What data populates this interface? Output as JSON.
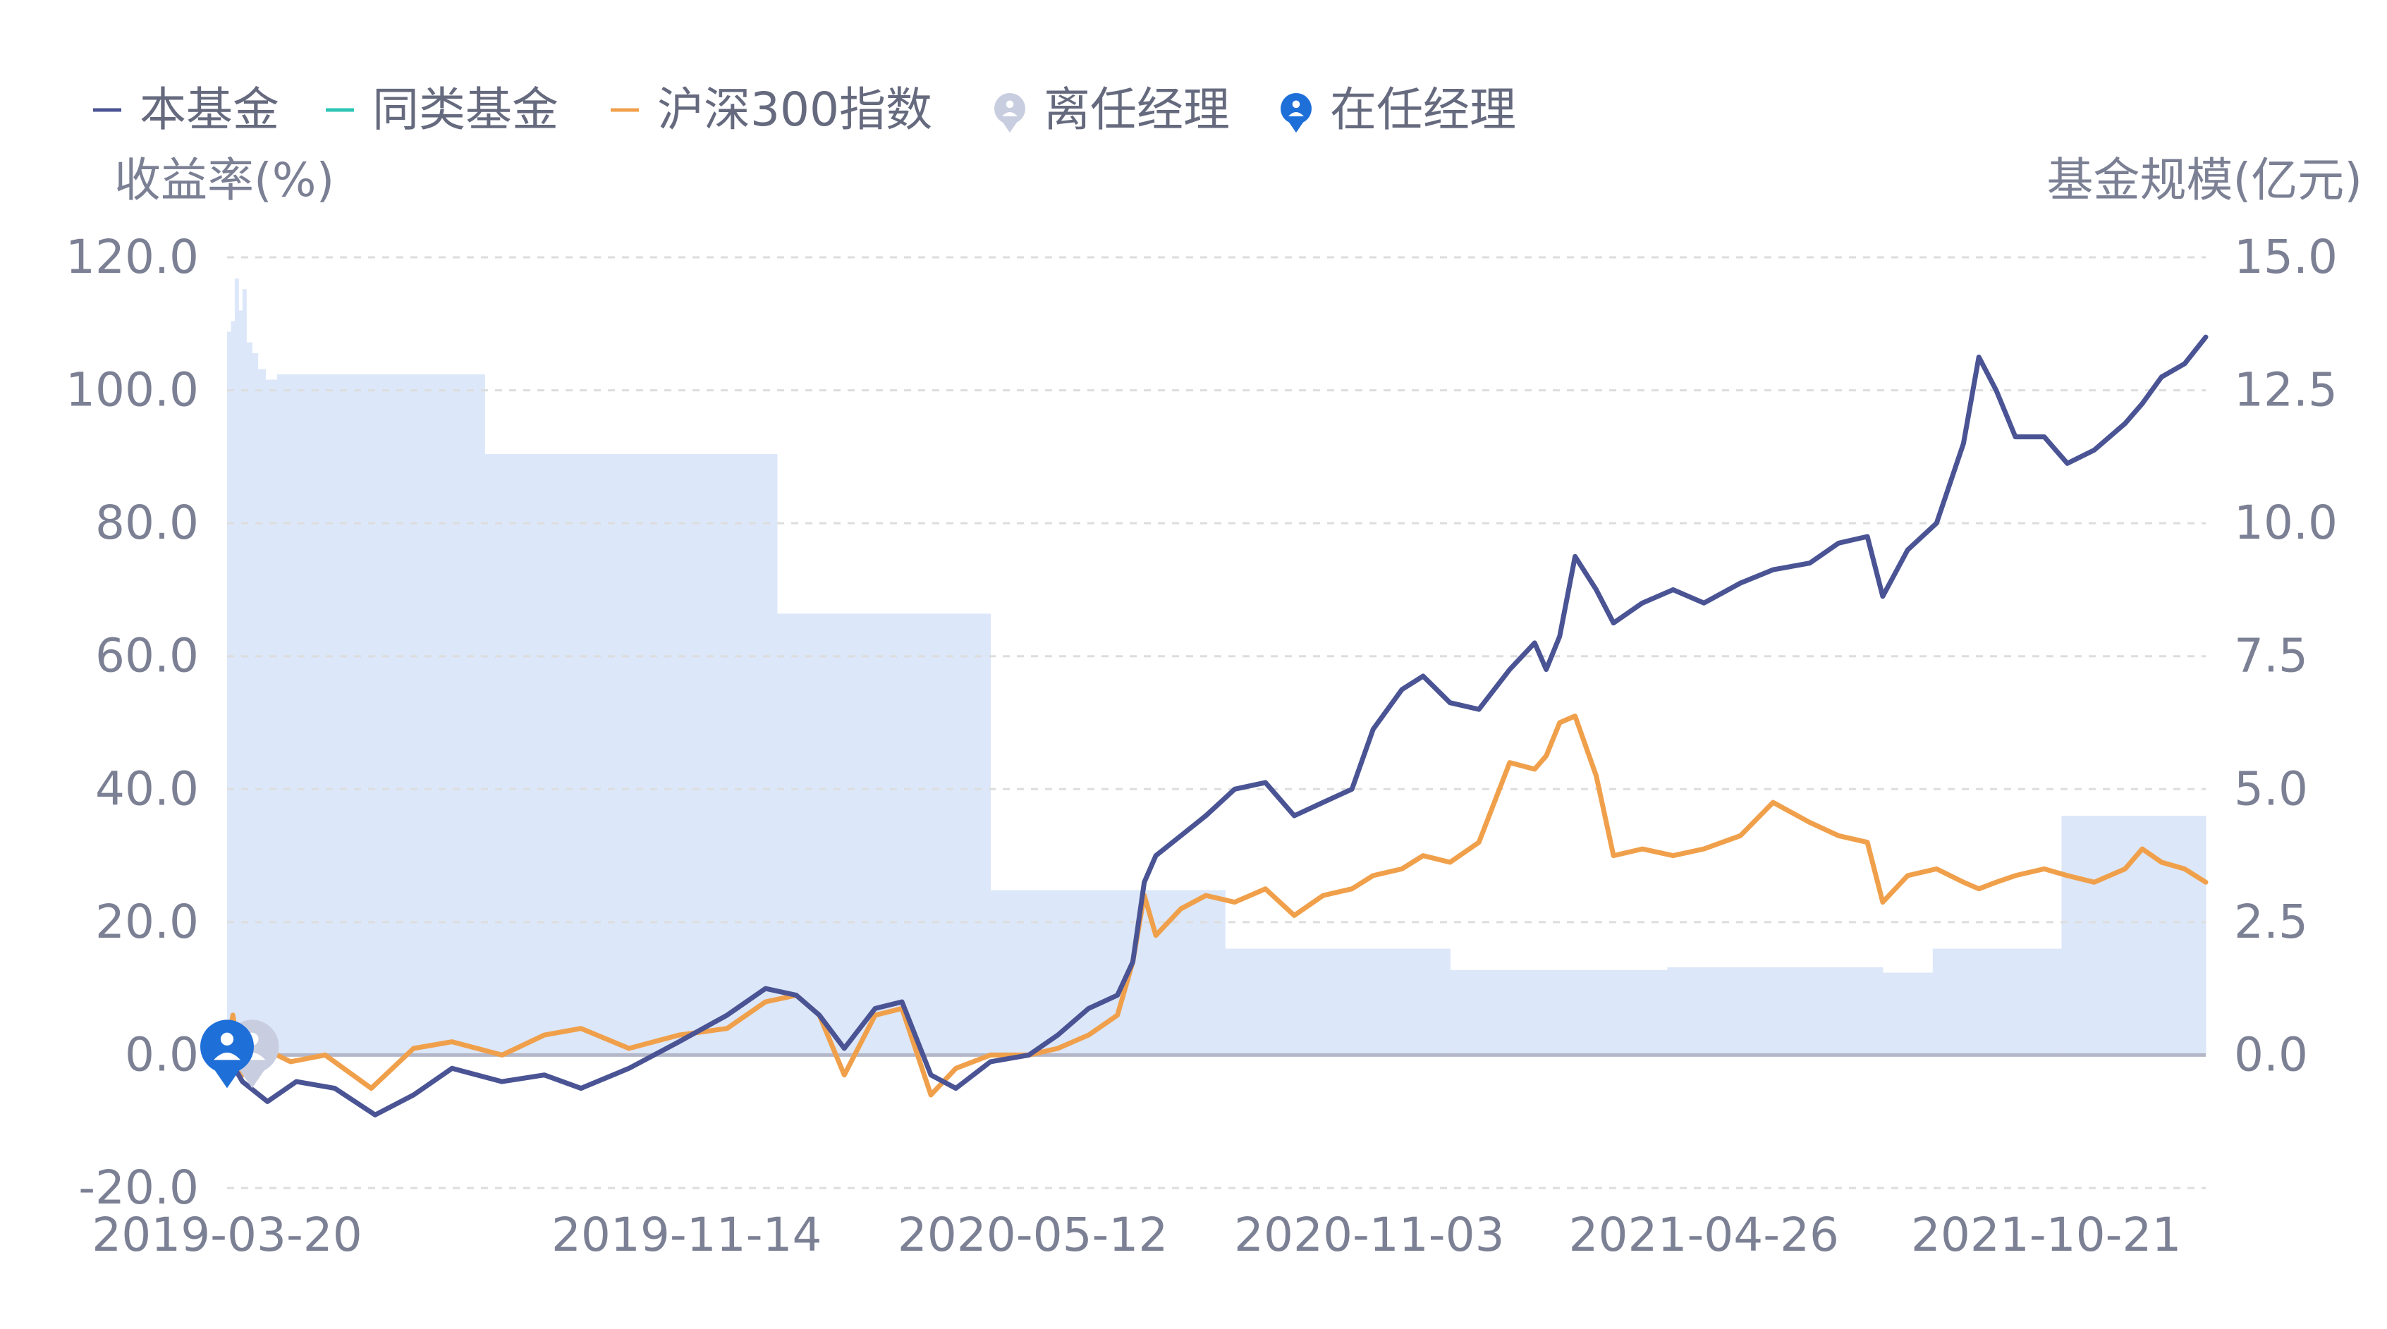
{
  "colors": {
    "fund": "#4a5494",
    "peer": "#2ec4b6",
    "index": "#f0a04b",
    "scale_fill": "#dce7f9",
    "former_manager": "#c8cee0",
    "current_manager": "#1f6fd8"
  },
  "legend": [
    {
      "key": "fund",
      "label": "本基金",
      "marker": "line-dash"
    },
    {
      "key": "peer",
      "label": "同类基金",
      "marker": "line-dash"
    },
    {
      "key": "index",
      "label": "沪深300指数",
      "marker": "line-dash"
    },
    {
      "key": "former_manager",
      "label": "离任经理",
      "marker": "person-pin-icon"
    },
    {
      "key": "current_manager",
      "label": "在任经理",
      "marker": "person-pin-icon"
    }
  ],
  "chart_data": {
    "type": "line",
    "left_axis_title": "收益率(%)",
    "right_axis_title": "基金规模(亿元)",
    "y_left": {
      "min": -20,
      "max": 120,
      "ticks": [
        -20,
        0,
        20,
        40,
        60,
        80,
        100,
        120
      ],
      "tick_labels": [
        "-20.0",
        "0.0",
        "20.0",
        "40.0",
        "60.0",
        "80.0",
        "100.0",
        "120.0"
      ]
    },
    "y_right": {
      "min": -2.5,
      "max": 15,
      "ticks": [
        0,
        2.5,
        5,
        7.5,
        10,
        12.5,
        15
      ],
      "tick_labels": [
        "0.0",
        "2.5",
        "5.0",
        "7.5",
        "10.0",
        "12.5",
        "15.0"
      ]
    },
    "x_range": [
      "2019-03-20",
      "2022-01-12"
    ],
    "x_tick_labels": [
      "2019-03-20",
      "2019-11-14",
      "2020-05-12",
      "2020-11-03",
      "2021-04-26",
      "2021-10-21"
    ],
    "grid": "horizontal-dashed",
    "legend_position": "top-left",
    "scale_series": {
      "name": "基金规模",
      "type": "step-area",
      "points": [
        [
          "2019-03-20",
          13.6
        ],
        [
          "2019-03-22",
          13.8
        ],
        [
          "2019-03-24",
          14.6
        ],
        [
          "2019-03-26",
          14.0
        ],
        [
          "2019-03-28",
          14.4
        ],
        [
          "2019-03-30",
          13.4
        ],
        [
          "2019-04-02",
          13.2
        ],
        [
          "2019-04-05",
          12.9
        ],
        [
          "2019-04-09",
          12.7
        ],
        [
          "2019-04-15",
          12.8
        ],
        [
          "2019-08-01",
          11.3
        ],
        [
          "2019-12-31",
          8.3
        ],
        [
          "2020-04-20",
          3.1
        ],
        [
          "2020-08-20",
          2.0
        ],
        [
          "2020-12-15",
          1.6
        ],
        [
          "2021-04-07",
          1.65
        ],
        [
          "2021-07-28",
          1.55
        ],
        [
          "2021-08-23",
          2.0
        ],
        [
          "2021-10-29",
          4.5
        ],
        [
          "2022-01-12",
          4.5
        ]
      ]
    },
    "series": [
      {
        "key": "fund",
        "name": "本基金",
        "points": [
          [
            "2019-03-20",
            0
          ],
          [
            "2019-03-28",
            -4
          ],
          [
            "2019-04-10",
            -7
          ],
          [
            "2019-04-25",
            -4
          ],
          [
            "2019-05-15",
            -5
          ],
          [
            "2019-06-05",
            -9
          ],
          [
            "2019-06-25",
            -6
          ],
          [
            "2019-07-15",
            -2
          ],
          [
            "2019-08-10",
            -4
          ],
          [
            "2019-09-01",
            -3
          ],
          [
            "2019-09-20",
            -5
          ],
          [
            "2019-10-15",
            -2
          ],
          [
            "2019-11-10",
            2
          ],
          [
            "2019-12-05",
            6
          ],
          [
            "2019-12-25",
            10
          ],
          [
            "2020-01-10",
            9
          ],
          [
            "2020-01-22",
            6
          ],
          [
            "2020-02-04",
            1
          ],
          [
            "2020-02-20",
            7
          ],
          [
            "2020-03-05",
            8
          ],
          [
            "2020-03-20",
            -3
          ],
          [
            "2020-04-02",
            -5
          ],
          [
            "2020-04-20",
            -1
          ],
          [
            "2020-05-10",
            0
          ],
          [
            "2020-05-25",
            3
          ],
          [
            "2020-06-10",
            7
          ],
          [
            "2020-06-25",
            9
          ],
          [
            "2020-07-03",
            14
          ],
          [
            "2020-07-09",
            26
          ],
          [
            "2020-07-15",
            30
          ],
          [
            "2020-07-28",
            33
          ],
          [
            "2020-08-10",
            36
          ],
          [
            "2020-08-25",
            40
          ],
          [
            "2020-09-10",
            41
          ],
          [
            "2020-09-25",
            36
          ],
          [
            "2020-10-10",
            38
          ],
          [
            "2020-10-25",
            40
          ],
          [
            "2020-11-05",
            49
          ],
          [
            "2020-11-20",
            55
          ],
          [
            "2020-12-01",
            57
          ],
          [
            "2020-12-15",
            53
          ],
          [
            "2020-12-30",
            52
          ],
          [
            "2021-01-15",
            58
          ],
          [
            "2021-01-28",
            62
          ],
          [
            "2021-02-03",
            58
          ],
          [
            "2021-02-10",
            63
          ],
          [
            "2021-02-18",
            75
          ],
          [
            "2021-03-01",
            70
          ],
          [
            "2021-03-10",
            65
          ],
          [
            "2021-03-25",
            68
          ],
          [
            "2021-04-10",
            70
          ],
          [
            "2021-04-26",
            68
          ],
          [
            "2021-05-15",
            71
          ],
          [
            "2021-06-01",
            73
          ],
          [
            "2021-06-20",
            74
          ],
          [
            "2021-07-05",
            77
          ],
          [
            "2021-07-20",
            78
          ],
          [
            "2021-07-28",
            69
          ],
          [
            "2021-08-10",
            76
          ],
          [
            "2021-08-25",
            80
          ],
          [
            "2021-09-08",
            92
          ],
          [
            "2021-09-16",
            105
          ],
          [
            "2021-09-25",
            100
          ],
          [
            "2021-10-05",
            93
          ],
          [
            "2021-10-20",
            93
          ],
          [
            "2021-11-01",
            89
          ],
          [
            "2021-11-15",
            91
          ],
          [
            "2021-12-01",
            95
          ],
          [
            "2021-12-10",
            98
          ],
          [
            "2021-12-20",
            102
          ],
          [
            "2022-01-01",
            104
          ],
          [
            "2022-01-12",
            108
          ]
        ]
      },
      {
        "key": "index",
        "name": "沪深300指数",
        "points": [
          [
            "2019-03-20",
            0
          ],
          [
            "2019-03-23",
            6
          ],
          [
            "2019-03-28",
            -3
          ],
          [
            "2019-04-08",
            1
          ],
          [
            "2019-04-22",
            -1
          ],
          [
            "2019-05-10",
            0
          ],
          [
            "2019-06-03",
            -5
          ],
          [
            "2019-06-25",
            1
          ],
          [
            "2019-07-15",
            2
          ],
          [
            "2019-08-10",
            0
          ],
          [
            "2019-09-01",
            3
          ],
          [
            "2019-09-20",
            4
          ],
          [
            "2019-10-15",
            1
          ],
          [
            "2019-11-10",
            3
          ],
          [
            "2019-12-05",
            4
          ],
          [
            "2019-12-25",
            8
          ],
          [
            "2020-01-10",
            9
          ],
          [
            "2020-01-22",
            6
          ],
          [
            "2020-02-04",
            -3
          ],
          [
            "2020-02-20",
            6
          ],
          [
            "2020-03-05",
            7
          ],
          [
            "2020-03-20",
            -6
          ],
          [
            "2020-04-02",
            -2
          ],
          [
            "2020-04-20",
            0
          ],
          [
            "2020-05-10",
            0
          ],
          [
            "2020-05-25",
            1
          ],
          [
            "2020-06-10",
            3
          ],
          [
            "2020-06-25",
            6
          ],
          [
            "2020-07-03",
            14
          ],
          [
            "2020-07-09",
            24
          ],
          [
            "2020-07-15",
            18
          ],
          [
            "2020-07-28",
            22
          ],
          [
            "2020-08-10",
            24
          ],
          [
            "2020-08-25",
            23
          ],
          [
            "2020-09-10",
            25
          ],
          [
            "2020-09-25",
            21
          ],
          [
            "2020-10-10",
            24
          ],
          [
            "2020-10-25",
            25
          ],
          [
            "2020-11-05",
            27
          ],
          [
            "2020-11-20",
            28
          ],
          [
            "2020-12-01",
            30
          ],
          [
            "2020-12-15",
            29
          ],
          [
            "2020-12-30",
            32
          ],
          [
            "2021-01-15",
            44
          ],
          [
            "2021-01-28",
            43
          ],
          [
            "2021-02-03",
            45
          ],
          [
            "2021-02-10",
            50
          ],
          [
            "2021-02-18",
            51
          ],
          [
            "2021-03-01",
            42
          ],
          [
            "2021-03-10",
            30
          ],
          [
            "2021-03-25",
            31
          ],
          [
            "2021-04-10",
            30
          ],
          [
            "2021-04-26",
            31
          ],
          [
            "2021-05-15",
            33
          ],
          [
            "2021-06-01",
            38
          ],
          [
            "2021-06-20",
            35
          ],
          [
            "2021-07-05",
            33
          ],
          [
            "2021-07-20",
            32
          ],
          [
            "2021-07-28",
            23
          ],
          [
            "2021-08-10",
            27
          ],
          [
            "2021-08-25",
            28
          ],
          [
            "2021-09-08",
            26
          ],
          [
            "2021-09-16",
            25
          ],
          [
            "2021-09-25",
            26
          ],
          [
            "2021-10-05",
            27
          ],
          [
            "2021-10-20",
            28
          ],
          [
            "2021-11-01",
            27
          ],
          [
            "2021-11-15",
            26
          ],
          [
            "2021-12-01",
            28
          ],
          [
            "2021-12-10",
            31
          ],
          [
            "2021-12-20",
            29
          ],
          [
            "2022-01-01",
            28
          ],
          [
            "2022-01-12",
            26
          ]
        ]
      }
    ],
    "manager_markers": [
      {
        "type": "former_manager",
        "label": "离任经理",
        "date": "2019-03-22",
        "value": 0
      },
      {
        "type": "current_manager",
        "label": "在任经理",
        "date": "2019-03-20",
        "value": 0
      }
    ]
  }
}
